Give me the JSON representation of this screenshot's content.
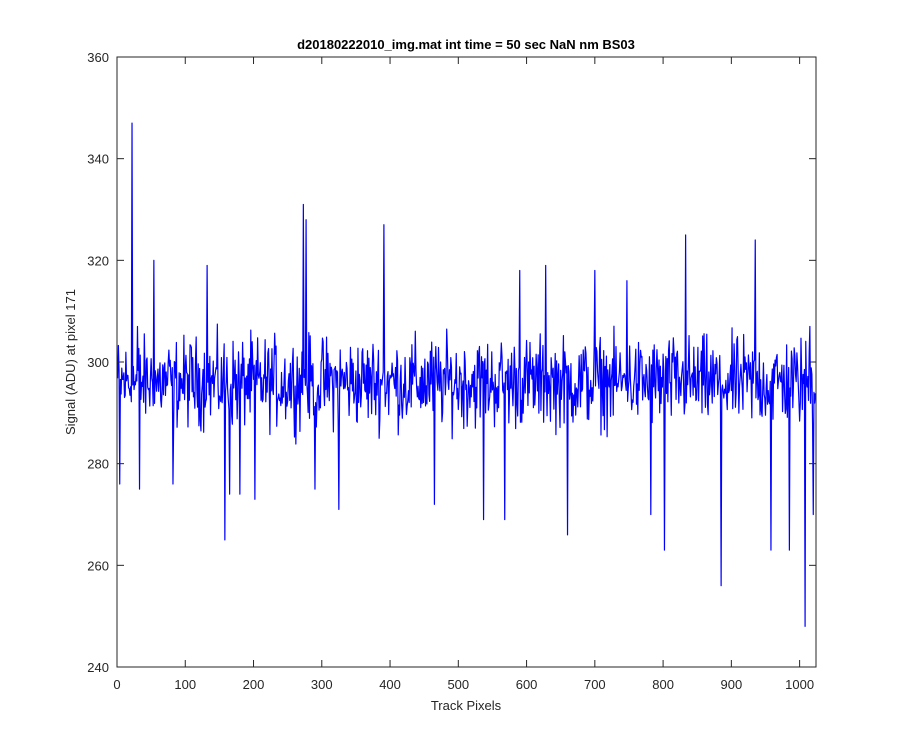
{
  "chart_data": {
    "type": "line",
    "title": "d20180222010_img.mat int time = 50 sec  NaN nm BS03",
    "xlabel": "Track Pixels",
    "ylabel": "Signal (ADU) at pixel 171",
    "xlim": [
      0,
      1024
    ],
    "ylim": [
      240,
      360
    ],
    "xticks": [
      0,
      100,
      200,
      300,
      400,
      500,
      600,
      700,
      800,
      900,
      1000
    ],
    "yticks": [
      240,
      260,
      280,
      300,
      320,
      340,
      360
    ],
    "grid": false,
    "legend": "none",
    "series": [
      {
        "color": "#0000ff",
        "description": "noisy signal fluctuating around 296 ADU",
        "x_start": 1,
        "x_step": 1,
        "spikes": [
          {
            "x": 4,
            "y": 276
          },
          {
            "x": 22,
            "y": 347
          },
          {
            "x": 30,
            "y": 307
          },
          {
            "x": 33,
            "y": 275
          },
          {
            "x": 54,
            "y": 320
          },
          {
            "x": 82,
            "y": 276
          },
          {
            "x": 132,
            "y": 319
          },
          {
            "x": 158,
            "y": 265
          },
          {
            "x": 165,
            "y": 274
          },
          {
            "x": 180,
            "y": 274
          },
          {
            "x": 202,
            "y": 273
          },
          {
            "x": 273,
            "y": 331
          },
          {
            "x": 277,
            "y": 328
          },
          {
            "x": 290,
            "y": 275
          },
          {
            "x": 325,
            "y": 271
          },
          {
            "x": 391,
            "y": 327
          },
          {
            "x": 465,
            "y": 272
          },
          {
            "x": 537,
            "y": 269
          },
          {
            "x": 568,
            "y": 269
          },
          {
            "x": 590,
            "y": 318
          },
          {
            "x": 628,
            "y": 319
          },
          {
            "x": 660,
            "y": 266
          },
          {
            "x": 700,
            "y": 318
          },
          {
            "x": 747,
            "y": 316
          },
          {
            "x": 782,
            "y": 270
          },
          {
            "x": 802,
            "y": 263
          },
          {
            "x": 833,
            "y": 325
          },
          {
            "x": 885,
            "y": 256
          },
          {
            "x": 935,
            "y": 324
          },
          {
            "x": 958,
            "y": 263
          },
          {
            "x": 985,
            "y": 263
          },
          {
            "x": 1008,
            "y": 248
          },
          {
            "x": 1015,
            "y": 307
          },
          {
            "x": 1020,
            "y": 270
          }
        ],
        "mean": 296,
        "spread": 8
      }
    ]
  }
}
